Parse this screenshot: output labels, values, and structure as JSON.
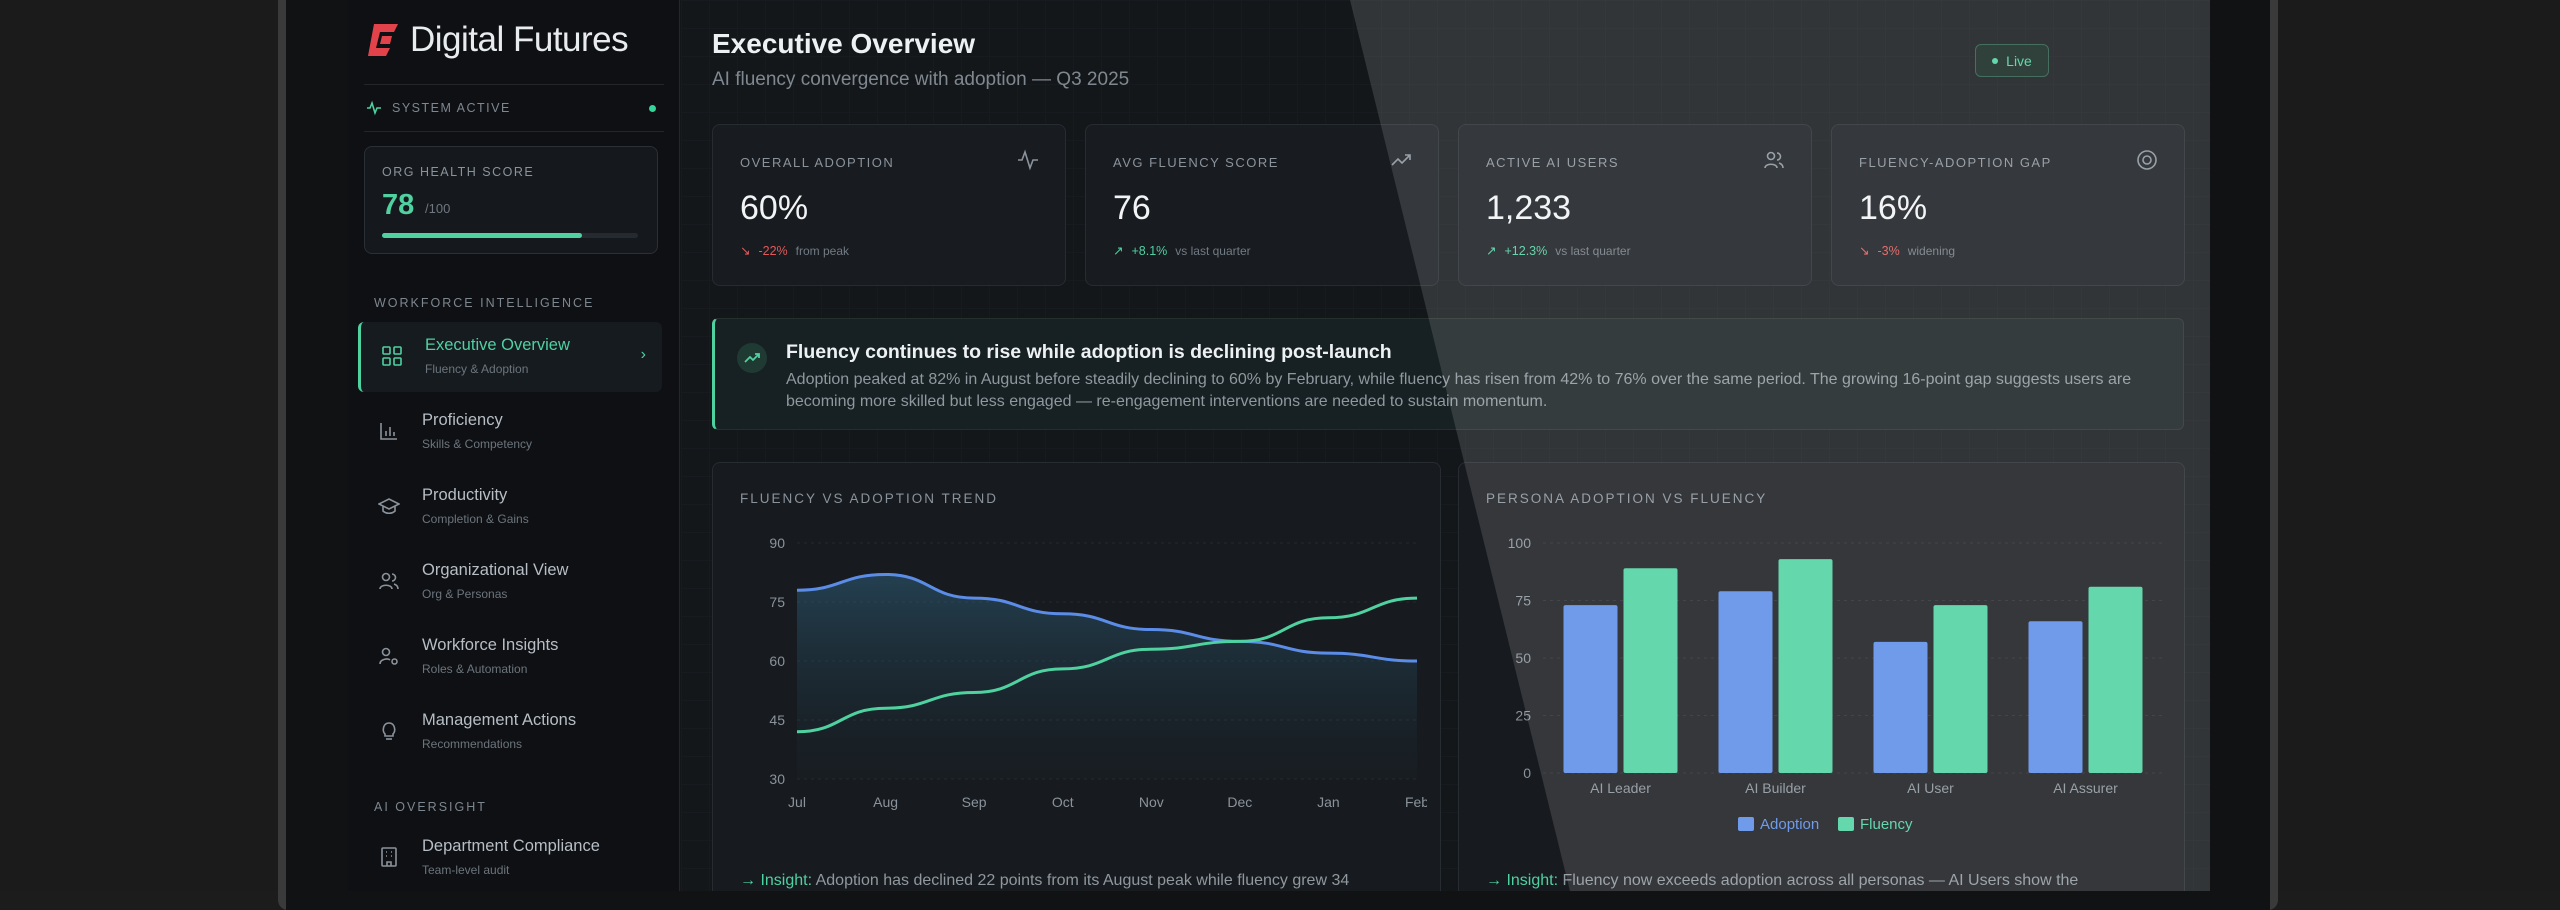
{
  "brand": {
    "name": "Digital Futures"
  },
  "system": {
    "status": "SYSTEM ACTIVE"
  },
  "health": {
    "label": "ORG HEALTH SCORE",
    "value": "78",
    "max": "/100",
    "progress": 0.78
  },
  "sidebar": {
    "section1": "WORKFORCE INTELLIGENCE",
    "section2": "AI OVERSIGHT",
    "items": [
      {
        "title": "Executive Overview",
        "sub": "Fluency & Adoption",
        "icon": "grid-icon",
        "active": true
      },
      {
        "title": "Proficiency",
        "sub": "Skills & Competency",
        "icon": "bar-chart-icon"
      },
      {
        "title": "Productivity",
        "sub": "Completion & Gains",
        "icon": "graduation-cap-icon"
      },
      {
        "title": "Organizational View",
        "sub": "Org & Personas",
        "icon": "users-icon"
      },
      {
        "title": "Workforce Insights",
        "sub": "Roles & Automation",
        "icon": "user-gear-icon"
      },
      {
        "title": "Management Actions",
        "sub": "Recommendations",
        "icon": "lightbulb-icon"
      },
      {
        "title": "Department Compliance",
        "sub": "Team-level audit",
        "icon": "building-icon"
      }
    ]
  },
  "header": {
    "title": "Executive Overview",
    "subtitle": "AI fluency convergence with adoption — Q3 2025",
    "live": "Live"
  },
  "kpis": [
    {
      "label": "OVERALL ADOPTION",
      "value": "60%",
      "delta": "-22%",
      "note": "from peak",
      "trend": "down",
      "icon": "activity-icon"
    },
    {
      "label": "AVG FLUENCY SCORE",
      "value": "76",
      "delta": "+8.1%",
      "note": "vs last quarter",
      "trend": "up",
      "icon": "trending-up-icon"
    },
    {
      "label": "ACTIVE AI USERS",
      "value": "1,233",
      "delta": "+12.3%",
      "note": "vs last quarter",
      "trend": "up",
      "icon": "users-icon"
    },
    {
      "label": "FLUENCY-ADOPTION GAP",
      "value": "16%",
      "delta": "-3%",
      "note": "widening",
      "trend": "down",
      "icon": "target-icon"
    }
  ],
  "insight": {
    "title": "Fluency continues to rise while adoption is declining post-launch",
    "body": "Adoption peaked at 82% in August before steadily declining to 60% by February, while fluency has risen from 42% to 76% over the same period. The growing 16-point gap suggests users are becoming more skilled but less engaged — re-engagement interventions are needed to sustain momentum."
  },
  "trend_panel": {
    "title": "FLUENCY VS ADOPTION TREND",
    "insight_label": "→ Insight:",
    "insight_text": "Adoption has declined 22 points from its August peak while fluency grew 34"
  },
  "persona_panel": {
    "title": "PERSONA ADOPTION VS FLUENCY",
    "insight_label": "→ Insight:",
    "insight_text": "Fluency now exceeds adoption across all personas — AI Users show the"
  },
  "colors": {
    "accent": "#4fd1a0",
    "adoption": "#5b8de8",
    "fluency": "#4fd1a0",
    "negative": "#e05a5a"
  },
  "chart_data": [
    {
      "type": "line",
      "x": [
        "Jul",
        "Aug",
        "Sep",
        "Oct",
        "Nov",
        "Dec",
        "Jan",
        "Feb"
      ],
      "ylim": [
        30,
        90
      ],
      "yticks": [
        30,
        45,
        60,
        75,
        90
      ],
      "series": [
        {
          "values": [
            78,
            82,
            76,
            72,
            68,
            65,
            62,
            60
          ]
        },
        {
          "values": [
            42,
            48,
            52,
            58,
            63,
            65,
            71,
            76
          ]
        }
      ]
    },
    {
      "type": "bar",
      "categories": [
        "AI Leader",
        "AI Builder",
        "AI User",
        "AI Assurer"
      ],
      "ylim": [
        0,
        100
      ],
      "yticks": [
        0,
        25,
        50,
        75,
        100
      ],
      "legend": "bottom",
      "series": [
        {
          "name": "Adoption",
          "values": [
            73,
            79,
            57,
            66
          ]
        },
        {
          "name": "Fluency",
          "values": [
            89,
            93,
            73,
            81
          ]
        }
      ]
    }
  ]
}
